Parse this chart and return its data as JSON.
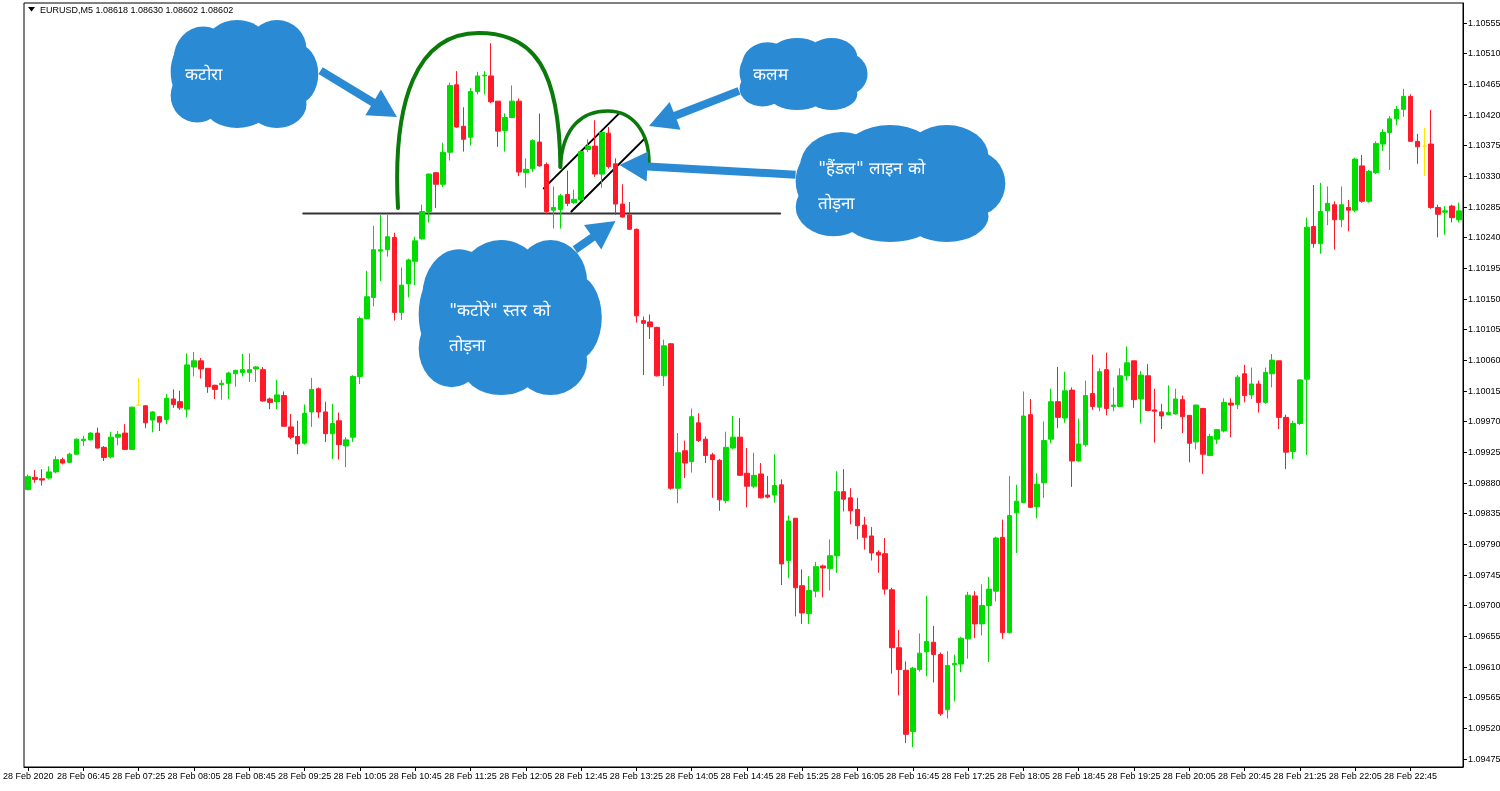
{
  "chart_data": {
    "type": "candlestick",
    "title": "EURUSD,M5 1.08618 1.08630 1.08602 1.08602",
    "x": [
      "2020-02-28T06:05",
      "2020-02-28T06:10",
      "2020-02-28T06:15",
      "2020-02-28T06:20",
      "2020-02-28T06:25",
      "2020-02-28T06:30",
      "2020-02-28T06:35",
      "2020-02-28T06:40",
      "2020-02-28T06:45",
      "2020-02-28T06:50",
      "2020-02-28T06:55",
      "2020-02-28T07:00",
      "2020-02-28T07:05",
      "2020-02-28T07:10",
      "2020-02-28T07:15",
      "2020-02-28T07:20",
      "2020-02-28T07:25",
      "2020-02-28T07:30",
      "2020-02-28T07:35",
      "2020-02-28T07:40",
      "2020-02-28T07:45",
      "2020-02-28T07:50",
      "2020-02-28T07:55",
      "2020-02-28T08:00",
      "2020-02-28T08:05",
      "2020-02-28T08:10",
      "2020-02-28T08:15",
      "2020-02-28T08:20",
      "2020-02-28T08:25",
      "2020-02-28T08:30",
      "2020-02-28T08:35",
      "2020-02-28T08:40",
      "2020-02-28T08:45",
      "2020-02-28T08:50",
      "2020-02-28T08:55",
      "2020-02-28T09:00",
      "2020-02-28T09:05",
      "2020-02-28T09:10",
      "2020-02-28T09:15",
      "2020-02-28T09:20",
      "2020-02-28T09:25",
      "2020-02-28T09:30",
      "2020-02-28T09:35",
      "2020-02-28T09:40",
      "2020-02-28T09:45",
      "2020-02-28T09:50",
      "2020-02-28T09:55",
      "2020-02-28T10:00",
      "2020-02-28T10:05",
      "2020-02-28T10:10",
      "2020-02-28T10:15",
      "2020-02-28T10:20",
      "2020-02-28T10:25",
      "2020-02-28T10:30",
      "2020-02-28T10:35",
      "2020-02-28T10:40",
      "2020-02-28T10:45",
      "2020-02-28T10:50",
      "2020-02-28T10:55",
      "2020-02-28T11:00",
      "2020-02-28T11:05",
      "2020-02-28T11:10",
      "2020-02-28T11:15",
      "2020-02-28T11:20",
      "2020-02-28T11:25",
      "2020-02-28T11:30",
      "2020-02-28T11:35",
      "2020-02-28T11:40",
      "2020-02-28T11:45",
      "2020-02-28T11:50",
      "2020-02-28T11:55",
      "2020-02-28T12:00",
      "2020-02-28T12:05",
      "2020-02-28T12:10",
      "2020-02-28T12:15",
      "2020-02-28T12:20",
      "2020-02-28T12:25",
      "2020-02-28T12:30",
      "2020-02-28T12:35",
      "2020-02-28T12:40",
      "2020-02-28T12:45",
      "2020-02-28T12:50",
      "2020-02-28T12:55",
      "2020-02-28T13:00",
      "2020-02-28T13:05",
      "2020-02-28T13:10",
      "2020-02-28T13:15",
      "2020-02-28T13:20",
      "2020-02-28T13:25",
      "2020-02-28T13:30",
      "2020-02-28T13:35",
      "2020-02-28T13:40",
      "2020-02-28T13:45",
      "2020-02-28T13:50",
      "2020-02-28T13:55",
      "2020-02-28T14:00",
      "2020-02-28T14:05",
      "2020-02-28T14:10",
      "2020-02-28T14:15",
      "2020-02-28T14:20",
      "2020-02-28T14:25",
      "2020-02-28T14:30",
      "2020-02-28T14:35",
      "2020-02-28T14:40",
      "2020-02-28T14:45",
      "2020-02-28T14:50",
      "2020-02-28T14:55",
      "2020-02-28T15:00",
      "2020-02-28T15:05",
      "2020-02-28T15:10",
      "2020-02-28T15:15",
      "2020-02-28T15:20",
      "2020-02-28T15:25",
      "2020-02-28T15:30",
      "2020-02-28T15:35",
      "2020-02-28T15:40",
      "2020-02-28T15:45",
      "2020-02-28T15:50",
      "2020-02-28T15:55",
      "2020-02-28T16:00",
      "2020-02-28T16:05",
      "2020-02-28T16:10",
      "2020-02-28T16:15",
      "2020-02-28T16:20",
      "2020-02-28T16:25",
      "2020-02-28T16:30",
      "2020-02-28T16:35",
      "2020-02-28T16:40",
      "2020-02-28T16:45",
      "2020-02-28T16:50",
      "2020-02-28T16:55",
      "2020-02-28T17:00",
      "2020-02-28T17:05",
      "2020-02-28T17:10",
      "2020-02-28T17:15",
      "2020-02-28T17:20",
      "2020-02-28T17:25",
      "2020-02-28T17:30",
      "2020-02-28T17:35",
      "2020-02-28T17:40",
      "2020-02-28T17:45",
      "2020-02-28T17:50",
      "2020-02-28T17:55",
      "2020-02-28T18:00",
      "2020-02-28T18:05",
      "2020-02-28T18:10",
      "2020-02-28T18:15",
      "2020-02-28T18:20",
      "2020-02-28T18:25",
      "2020-02-28T18:30",
      "2020-02-28T18:35",
      "2020-02-28T18:40",
      "2020-02-28T18:45",
      "2020-02-28T18:50",
      "2020-02-28T18:55",
      "2020-02-28T19:00",
      "2020-02-28T19:05",
      "2020-02-28T19:10",
      "2020-02-28T19:15",
      "2020-02-28T19:20",
      "2020-02-28T19:25",
      "2020-02-28T19:30",
      "2020-02-28T19:35",
      "2020-02-28T19:40",
      "2020-02-28T19:45",
      "2020-02-28T19:50",
      "2020-02-28T19:55",
      "2020-02-28T20:00",
      "2020-02-28T20:05",
      "2020-02-28T20:10",
      "2020-02-28T20:15",
      "2020-02-28T20:20",
      "2020-02-28T20:25",
      "2020-02-28T20:30",
      "2020-02-28T20:35",
      "2020-02-28T20:40",
      "2020-02-28T20:45",
      "2020-02-28T20:50",
      "2020-02-28T20:55",
      "2020-02-28T21:00",
      "2020-02-28T21:05",
      "2020-02-28T21:10",
      "2020-02-28T21:15",
      "2020-02-28T21:20",
      "2020-02-28T21:25",
      "2020-02-28T21:30",
      "2020-02-28T21:35",
      "2020-02-28T21:40",
      "2020-02-28T21:45",
      "2020-02-28T21:50",
      "2020-02-28T21:55",
      "2020-02-28T22:00",
      "2020-02-28T22:05",
      "2020-02-28T22:10",
      "2020-02-28T22:15",
      "2020-02-28T22:20",
      "2020-02-28T22:25",
      "2020-02-28T22:30",
      "2020-02-28T22:35",
      "2020-02-28T22:40",
      "2020-02-28T22:45",
      "2020-02-28T22:50",
      "2020-02-28T22:55",
      "2020-02-28T23:00",
      "2020-02-28T23:05",
      "2020-02-28T23:10",
      "2020-02-28T23:15",
      "2020-02-28T23:20"
    ],
    "ohlc": [
      [
        1.0987,
        1.09892,
        1.09869,
        1.09889
      ],
      [
        1.09888,
        1.09899,
        1.0988,
        1.09885
      ],
      [
        1.09886,
        1.099,
        1.09876,
        1.09884
      ],
      [
        1.09887,
        1.09904,
        1.09885,
        1.09896
      ],
      [
        1.09896,
        1.09919,
        1.09894,
        1.09914
      ],
      [
        1.09914,
        1.09917,
        1.09907,
        1.09909
      ],
      [
        1.0991,
        1.09924,
        1.09909,
        1.09922
      ],
      [
        1.09922,
        1.09945,
        1.09921,
        1.09944
      ],
      [
        1.09942,
        1.09949,
        1.09934,
        1.09944
      ],
      [
        1.09943,
        1.09954,
        1.09942,
        1.09953
      ],
      [
        1.09953,
        1.09961,
        1.0993,
        1.09931
      ],
      [
        1.09932,
        1.09934,
        1.09912,
        1.09917
      ],
      [
        1.09918,
        1.09955,
        1.09916,
        1.09947
      ],
      [
        1.09947,
        1.09956,
        1.09935,
        1.09951
      ],
      [
        1.09953,
        1.09966,
        1.09928,
        1.09929
      ],
      [
        1.09929,
        1.09992,
        1.09928,
        1.09991
      ],
      [
        1.09994,
        1.10034,
        1.09994,
        1.09994
      ],
      [
        1.09993,
        1.09994,
        1.0996,
        1.09968
      ],
      [
        1.09972,
        1.09985,
        1.09954,
        1.09984
      ],
      [
        1.09977,
        1.09978,
        1.09956,
        1.09969
      ],
      [
        1.09973,
        1.1001,
        1.09966,
        1.10004
      ],
      [
        1.10003,
        1.10017,
        1.0999,
        1.09995
      ],
      [
        1.09999,
        1.10015,
        1.09987,
        1.0999
      ],
      [
        1.09988,
        1.1007,
        1.09976,
        1.10053
      ],
      [
        1.1005,
        1.10072,
        1.10036,
        1.10059
      ],
      [
        1.10059,
        1.10063,
        1.10033,
        1.10047
      ],
      [
        1.10048,
        1.10048,
        1.10012,
        1.10021
      ],
      [
        1.10023,
        1.10024,
        1.10003,
        1.10017
      ],
      [
        1.10024,
        1.10031,
        1.10002,
        1.10026
      ],
      [
        1.10026,
        1.10043,
        1.10003,
        1.10041
      ],
      [
        1.1004,
        1.10046,
        1.10021,
        1.10045
      ],
      [
        1.10042,
        1.10069,
        1.10036,
        1.10046
      ],
      [
        1.10042,
        1.1007,
        1.10028,
        1.10046
      ],
      [
        1.10047,
        1.10051,
        1.10028,
        1.1005
      ],
      [
        1.10046,
        1.1005,
        1.09999,
        1.1
      ],
      [
        1.10003,
        1.10005,
        1.09988,
        1.09998
      ],
      [
        1.09999,
        1.10031,
        1.09988,
        1.10009
      ],
      [
        1.10008,
        1.10014,
        1.09962,
        1.09963
      ],
      [
        1.09962,
        1.09981,
        1.09944,
        1.09947
      ],
      [
        1.09948,
        1.09971,
        1.09922,
        1.09937
      ],
      [
        1.09938,
        1.09995,
        1.09936,
        1.09982
      ],
      [
        1.09984,
        1.10034,
        1.09962,
        1.10017
      ],
      [
        1.10018,
        1.1002,
        1.09975,
        1.09984
      ],
      [
        1.09984,
        1.09999,
        1.0994,
        1.09952
      ],
      [
        1.09952,
        1.09996,
        1.09915,
        1.09967
      ],
      [
        1.09971,
        1.09983,
        1.09914,
        1.09936
      ],
      [
        1.09934,
        1.09947,
        1.09903,
        1.09943
      ],
      [
        1.09947,
        1.10038,
        1.0994,
        1.10036
      ],
      [
        1.10036,
        1.10124,
        1.10025,
        1.10121
      ],
      [
        1.10121,
        1.10191,
        1.1012,
        1.10153
      ],
      [
        1.10152,
        1.10257,
        1.10139,
        1.10222
      ],
      [
        1.1022,
        1.10273,
        1.10176,
        1.10222
      ],
      [
        1.10222,
        1.10273,
        1.10212,
        1.10241
      ],
      [
        1.1024,
        1.10247,
        1.10118,
        1.1013
      ],
      [
        1.1013,
        1.10196,
        1.10119,
        1.1017
      ],
      [
        1.10172,
        1.10209,
        1.10152,
        1.10207
      ],
      [
        1.10205,
        1.10241,
        1.1017,
        1.10235
      ],
      [
        1.10238,
        1.10288,
        1.10237,
        1.10278
      ],
      [
        1.10278,
        1.10334,
        1.10262,
        1.10333
      ],
      [
        1.10335,
        1.10336,
        1.10283,
        1.10318
      ],
      [
        1.10318,
        1.10379,
        1.10314,
        1.10365
      ],
      [
        1.10365,
        1.10467,
        1.10353,
        1.10463
      ],
      [
        1.10464,
        1.10484,
        1.10401,
        1.10402
      ],
      [
        1.10403,
        1.10431,
        1.10366,
        1.10384
      ],
      [
        1.10387,
        1.10459,
        1.10375,
        1.10454
      ],
      [
        1.10454,
        1.10483,
        1.1045,
        1.10477
      ],
      [
        1.10477,
        1.10484,
        1.1045,
        1.10478
      ],
      [
        1.10477,
        1.10525,
        1.10437,
        1.10439
      ],
      [
        1.1044,
        1.1044,
        1.10373,
        1.10396
      ],
      [
        1.10397,
        1.10422,
        1.10366,
        1.10416
      ],
      [
        1.10416,
        1.10463,
        1.10415,
        1.1044
      ],
      [
        1.1044,
        1.10444,
        1.1033,
        1.10336
      ],
      [
        1.10335,
        1.10356,
        1.10313,
        1.1034
      ],
      [
        1.10341,
        1.10384,
        1.10336,
        1.10382
      ],
      [
        1.1038,
        1.10422,
        1.10344,
        1.10345
      ],
      [
        1.10347,
        1.1035,
        1.10274,
        1.10278
      ],
      [
        1.1028,
        1.10315,
        1.10253,
        1.10284
      ],
      [
        1.10281,
        1.10304,
        1.10253,
        1.10301
      ],
      [
        1.10303,
        1.10338,
        1.10286,
        1.1029
      ],
      [
        1.10291,
        1.1031,
        1.10289,
        1.10296
      ],
      [
        1.10295,
        1.10368,
        1.10293,
        1.10366
      ],
      [
        1.10369,
        1.10384,
        1.10365,
        1.10374
      ],
      [
        1.10374,
        1.10412,
        1.10329,
        1.10333
      ],
      [
        1.10333,
        1.10395,
        1.10313,
        1.10394
      ],
      [
        1.10393,
        1.10402,
        1.10341,
        1.10344
      ],
      [
        1.10348,
        1.10356,
        1.10273,
        1.10289
      ],
      [
        1.10289,
        1.10318,
        1.10269,
        1.1027
      ],
      [
        1.10273,
        1.10292,
        1.10251,
        1.10252
      ],
      [
        1.10252,
        1.10253,
        1.10115,
        1.10125
      ],
      [
        1.10118,
        1.10124,
        1.10038,
        1.10114
      ],
      [
        1.10116,
        1.10127,
        1.10091,
        1.10109
      ],
      [
        1.10108,
        1.10109,
        1.10036,
        1.10037
      ],
      [
        1.10037,
        1.1009,
        1.10022,
        1.10081
      ],
      [
        1.10084,
        1.10085,
        1.0987,
        1.09872
      ],
      [
        1.09872,
        1.09953,
        1.0985,
        1.09924
      ],
      [
        1.09927,
        1.09942,
        1.09887,
        1.09909
      ],
      [
        1.09911,
        1.09989,
        1.09895,
        1.09977
      ],
      [
        1.09968,
        1.09982,
        1.0994,
        1.09942
      ],
      [
        1.09944,
        1.09948,
        1.09909,
        1.0992
      ],
      [
        1.09921,
        1.09924,
        1.09858,
        1.09914
      ],
      [
        1.09913,
        1.09915,
        1.09839,
        1.09855
      ],
      [
        1.09854,
        1.09955,
        1.0985,
        1.09932
      ],
      [
        1.09931,
        1.09978,
        1.09929,
        1.09947
      ],
      [
        1.09947,
        1.09975,
        1.0989,
        1.09891
      ],
      [
        1.09894,
        1.09931,
        1.09844,
        1.09875
      ],
      [
        1.09875,
        1.09924,
        1.09872,
        1.09891
      ],
      [
        1.09893,
        1.09909,
        1.09857,
        1.09858
      ],
      [
        1.09862,
        1.0989,
        1.09857,
        1.09859
      ],
      [
        1.09862,
        1.09922,
        1.09851,
        1.09876
      ],
      [
        1.09877,
        1.09885,
        1.0973,
        1.09761
      ],
      [
        1.09766,
        1.09832,
        1.0974,
        1.09824
      ],
      [
        1.09828,
        1.09828,
        1.09684,
        1.09726
      ],
      [
        1.09729,
        1.09753,
        1.09673,
        1.09689
      ],
      [
        1.09688,
        1.09743,
        1.09673,
        1.09722
      ],
      [
        1.09721,
        1.09764,
        1.09712,
        1.09757
      ],
      [
        1.09758,
        1.0976,
        1.09712,
        1.09755
      ],
      [
        1.09754,
        1.09797,
        1.09722,
        1.09773
      ],
      [
        1.09773,
        1.09897,
        1.09748,
        1.09867
      ],
      [
        1.09867,
        1.099,
        1.09838,
        1.09856
      ],
      [
        1.09858,
        1.09872,
        1.09819,
        1.09839
      ],
      [
        1.09841,
        1.09858,
        1.09797,
        1.09817
      ],
      [
        1.09818,
        1.0983,
        1.09782,
        1.098
      ],
      [
        1.09802,
        1.09815,
        1.09766,
        1.09777
      ],
      [
        1.09778,
        1.09781,
        1.09748,
        1.09774
      ],
      [
        1.09776,
        1.09799,
        1.09716,
        1.09724
      ],
      [
        1.09723,
        1.09726,
        1.096,
        1.09638
      ],
      [
        1.09638,
        1.09664,
        1.09568,
        1.09606
      ],
      [
        1.09605,
        1.09618,
        1.09498,
        1.09511
      ],
      [
        1.09515,
        1.0961,
        1.09492,
        1.09608
      ],
      [
        1.09606,
        1.09659,
        1.09603,
        1.0963
      ],
      [
        1.09632,
        1.09714,
        1.09596,
        1.09647
      ],
      [
        1.09646,
        1.0967,
        1.09587,
        1.09628
      ],
      [
        1.09628,
        1.09631,
        1.09538,
        1.09541
      ],
      [
        1.09547,
        1.09633,
        1.09534,
        1.09612
      ],
      [
        1.09613,
        1.09628,
        1.09559,
        1.09615
      ],
      [
        1.09614,
        1.09654,
        1.09602,
        1.09652
      ],
      [
        1.09651,
        1.0972,
        1.09622,
        1.09715
      ],
      [
        1.09714,
        1.09721,
        1.09652,
        1.09673
      ],
      [
        1.09673,
        1.09731,
        1.09656,
        1.097
      ],
      [
        1.097,
        1.09742,
        1.09617,
        1.09724
      ],
      [
        1.09721,
        1.09801,
        1.09706,
        1.09799
      ],
      [
        1.098,
        1.09826,
        1.09651,
        1.0966
      ],
      [
        1.0966,
        1.0989,
        1.09659,
        1.09832
      ],
      [
        1.09836,
        1.09877,
        1.09777,
        1.09853
      ],
      [
        1.09851,
        1.10014,
        1.0985,
        1.09978
      ],
      [
        1.0998,
        1.10003,
        1.09843,
        1.09844
      ],
      [
        1.09845,
        1.09894,
        1.09828,
        1.09878
      ],
      [
        1.0988,
        1.0997,
        1.09858,
        1.09942
      ],
      [
        1.09944,
        1.10018,
        1.09938,
        1.09999
      ],
      [
        1.09999,
        1.1005,
        1.0996,
        1.09976
      ],
      [
        1.09975,
        1.10043,
        1.09968,
        1.10015
      ],
      [
        1.10016,
        1.1002,
        1.09874,
        1.09912
      ],
      [
        1.09912,
        1.09974,
        1.09911,
        1.09937
      ],
      [
        1.09936,
        1.1003,
        1.09933,
        1.10008
      ],
      [
        1.10011,
        1.10068,
        1.09987,
        1.09992
      ],
      [
        1.09991,
        1.10048,
        1.09985,
        1.10043
      ],
      [
        1.10046,
        1.10071,
        1.09979,
        1.09989
      ],
      [
        1.09992,
        1.1002,
        1.09985,
        1.09994
      ],
      [
        1.09992,
        1.10048,
        1.09991,
        1.10037
      ],
      [
        1.10037,
        1.1008,
        1.1003,
        1.10056
      ],
      [
        1.10059,
        1.10059,
        1.0999,
        1.10002
      ],
      [
        1.10003,
        1.10044,
        1.09967,
        1.10038
      ],
      [
        1.10037,
        1.10054,
        1.09985,
        1.09986
      ],
      [
        1.09987,
        1.10018,
        1.09939,
        1.09985
      ],
      [
        1.09984,
        1.09996,
        1.09959,
        1.09978
      ],
      [
        1.0998,
        1.10023,
        1.09979,
        1.09983
      ],
      [
        1.09981,
        1.10018,
        1.0998,
        1.10003
      ],
      [
        1.10002,
        1.10008,
        1.09953,
        1.09977
      ],
      [
        1.09979,
        1.09979,
        1.0991,
        1.09938
      ],
      [
        1.0994,
        1.09995,
        1.09929,
        1.09994
      ],
      [
        1.09989,
        1.0999,
        1.09893,
        1.09922
      ],
      [
        1.0992,
        1.09952,
        1.09919,
        1.09948
      ],
      [
        1.09944,
        1.09959,
        1.09937,
        1.09958
      ],
      [
        1.09956,
        1.10004,
        1.09954,
        1.09998
      ],
      [
        1.09997,
        1.10004,
        1.09947,
        1.09994
      ],
      [
        1.09995,
        1.10038,
        1.09988,
        1.10035
      ],
      [
        1.1004,
        1.10053,
        1.09998,
        1.10008
      ],
      [
        1.10009,
        1.10049,
        1.10003,
        1.10025
      ],
      [
        1.10025,
        1.1003,
        1.09983,
        1.09998
      ],
      [
        1.09998,
        1.10049,
        1.09996,
        1.10042
      ],
      [
        1.1004,
        1.10069,
        1.1002,
        1.1006
      ],
      [
        1.10059,
        1.10059,
        1.09959,
        1.09976
      ],
      [
        1.09976,
        1.0998,
        1.099,
        1.09925
      ],
      [
        1.09926,
        1.09971,
        1.09915,
        1.09967
      ],
      [
        1.09967,
        1.10032,
        1.09965,
        1.10031
      ],
      [
        1.10032,
        1.10269,
        1.09921,
        1.10255
      ],
      [
        1.10256,
        1.10317,
        1.10225,
        1.10231
      ],
      [
        1.10231,
        1.1032,
        1.10216,
        1.10278
      ],
      [
        1.10279,
        1.10315,
        1.10258,
        1.1029
      ],
      [
        1.10288,
        1.10293,
        1.10222,
        1.10266
      ],
      [
        1.10266,
        1.10315,
        1.10255,
        1.10288
      ],
      [
        1.10284,
        1.10295,
        1.10249,
        1.1028
      ],
      [
        1.1028,
        1.10357,
        1.10277,
        1.10355
      ],
      [
        1.10345,
        1.10361,
        1.10291,
        1.10293
      ],
      [
        1.10293,
        1.10339,
        1.10291,
        1.10337
      ],
      [
        1.10335,
        1.10381,
        1.10333,
        1.10378
      ],
      [
        1.10377,
        1.10399,
        1.10367,
        1.10394
      ],
      [
        1.10394,
        1.10418,
        1.10339,
        1.10414
      ],
      [
        1.10414,
        1.10433,
        1.10405,
        1.10428
      ],
      [
        1.10428,
        1.10458,
        1.10417,
        1.10447
      ],
      [
        1.10447,
        1.1045,
        1.10381,
        1.10381
      ],
      [
        1.10381,
        1.10392,
        1.10348,
        1.10373
      ],
      [
        1.10374,
        1.10401,
        1.1033,
        1.10374
      ],
      [
        1.10377,
        1.10427,
        1.10282,
        1.10284
      ],
      [
        1.10284,
        1.10288,
        1.1024,
        1.10274
      ],
      [
        1.10277,
        1.10286,
        1.10244,
        1.10279
      ],
      [
        1.10286,
        1.10288,
        1.10262,
        1.10269
      ],
      [
        1.10266,
        1.10291,
        1.10262,
        1.10279
      ]
    ],
    "colors": [
      "#00dc00",
      "#ff1a2a",
      "#ff1a2a",
      "#00dc00",
      "#00dc00",
      "#ff1a2a",
      "#00dc00",
      "#00dc00",
      "#00dc00",
      "#00dc00",
      "#ff1a2a",
      "#ff1a2a",
      "#00dc00",
      "#00dc00",
      "#ff1a2a",
      "#00dc00",
      "#ffe800",
      "#ff1a2a",
      "#00dc00",
      "#ff1a2a",
      "#00dc00",
      "#ff1a2a",
      "#ff1a2a",
      "#00dc00",
      "#00dc00",
      "#ff1a2a",
      "#ff1a2a",
      "#ff1a2a",
      "#00dc00",
      "#00dc00",
      "#00dc00",
      "#00dc00",
      "#00dc00",
      "#00dc00",
      "#ff1a2a",
      "#ff1a2a",
      "#00dc00",
      "#ff1a2a",
      "#ff1a2a",
      "#ff1a2a",
      "#00dc00",
      "#00dc00",
      "#ff1a2a",
      "#ff1a2a",
      "#00dc00",
      "#ff1a2a",
      "#00dc00",
      "#00dc00",
      "#00dc00",
      "#00dc00",
      "#00dc00",
      "#00dc00",
      "#00dc00",
      "#ff1a2a",
      "#00dc00",
      "#00dc00",
      "#00dc00",
      "#00dc00",
      "#00dc00",
      "#ff1a2a",
      "#00dc00",
      "#00dc00",
      "#ff1a2a",
      "#ff1a2a",
      "#00dc00",
      "#00dc00",
      "#00dc00",
      "#ff1a2a",
      "#ff1a2a",
      "#00dc00",
      "#00dc00",
      "#ff1a2a",
      "#00dc00",
      "#00dc00",
      "#ff1a2a",
      "#ff1a2a",
      "#00dc00",
      "#00dc00",
      "#ff1a2a",
      "#00dc00",
      "#00dc00",
      "#00dc00",
      "#ff1a2a",
      "#00dc00",
      "#ff1a2a",
      "#ff1a2a",
      "#ff1a2a",
      "#ff1a2a",
      "#ff1a2a",
      "#ff1a2a",
      "#ff1a2a",
      "#ff1a2a",
      "#00dc00",
      "#ff1a2a",
      "#00dc00",
      "#ff1a2a",
      "#00dc00",
      "#ff1a2a",
      "#ff1a2a",
      "#ff1a2a",
      "#ff1a2a",
      "#00dc00",
      "#00dc00",
      "#ff1a2a",
      "#ff1a2a",
      "#00dc00",
      "#ff1a2a",
      "#ff1a2a",
      "#00dc00",
      "#ff1a2a",
      "#00dc00",
      "#ff1a2a",
      "#ff1a2a",
      "#00dc00",
      "#00dc00",
      "#ff1a2a",
      "#00dc00",
      "#00dc00",
      "#ff1a2a",
      "#ff1a2a",
      "#ff1a2a",
      "#ff1a2a",
      "#ff1a2a",
      "#ff1a2a",
      "#ff1a2a",
      "#ff1a2a",
      "#ff1a2a",
      "#ff1a2a",
      "#00dc00",
      "#00dc00",
      "#00dc00",
      "#ff1a2a",
      "#ff1a2a",
      "#00dc00",
      "#00dc00",
      "#00dc00",
      "#00dc00",
      "#ff1a2a",
      "#00dc00",
      "#00dc00",
      "#00dc00",
      "#ff1a2a",
      "#00dc00",
      "#00dc00",
      "#00dc00",
      "#ff1a2a",
      "#00dc00",
      "#00dc00",
      "#00dc00",
      "#ff1a2a",
      "#00dc00",
      "#ff1a2a",
      "#00dc00",
      "#00dc00",
      "#ff1a2a",
      "#00dc00",
      "#ff1a2a",
      "#00dc00",
      "#00dc00",
      "#00dc00",
      "#ff1a2a",
      "#00dc00",
      "#ff1a2a",
      "#ff1a2a",
      "#ff1a2a",
      "#00dc00",
      "#00dc00",
      "#ff1a2a",
      "#ff1a2a",
      "#00dc00",
      "#ff1a2a",
      "#00dc00",
      "#00dc00",
      "#00dc00",
      "#ff1a2a",
      "#00dc00",
      "#ff1a2a",
      "#00dc00",
      "#ff1a2a",
      "#00dc00",
      "#00dc00",
      "#ff1a2a",
      "#ff1a2a",
      "#00dc00",
      "#00dc00",
      "#00dc00",
      "#ff1a2a",
      "#00dc00",
      "#00dc00",
      "#ff1a2a",
      "#00dc00",
      "#ff1a2a",
      "#00dc00",
      "#ff1a2a",
      "#00dc00",
      "#00dc00",
      "#00dc00",
      "#00dc00",
      "#00dc00",
      "#00dc00",
      "#ff1a2a",
      "#ff1a2a",
      "#ffe800",
      "#ff1a2a",
      "#ff1a2a",
      "#00dc00",
      "#ff1a2a",
      "#00dc00"
    ],
    "series": [
      {
        "type": "line",
        "x": [
          "2020-02-28T09:24",
          "2020-02-28T15:09"
        ],
        "values": [
          1.10275,
          1.10275
        ],
        "color": "#333333"
      },
      {
        "type": "line",
        "x": [
          "2020-02-28T12:18",
          "2020-02-28T13:12"
        ],
        "values": [
          1.10312,
          1.10421
        ],
        "color": "#000000"
      },
      {
        "type": "line",
        "x": [
          "2020-02-28T12:38",
          "2020-02-28T13:31"
        ],
        "values": [
          1.10278,
          1.10385
        ],
        "color": "#000000"
      }
    ],
    "xlim": [
      "2020-02-28T06:02",
      "2020-02-28T23:23"
    ],
    "xticks": [
      {
        "value": "2020-02-28T06:05",
        "label": "28 Feb 2020"
      },
      {
        "value": "2020-02-28T06:45",
        "label": "28 Feb 06:45"
      },
      {
        "value": "2020-02-28T07:25",
        "label": "28 Feb 07:25"
      },
      {
        "value": "2020-02-28T08:05",
        "label": "28 Feb 08:05"
      },
      {
        "value": "2020-02-28T08:45",
        "label": "28 Feb 08:45"
      },
      {
        "value": "2020-02-28T09:25",
        "label": "28 Feb 09:25"
      },
      {
        "value": "2020-02-28T10:05",
        "label": "28 Feb 10:05"
      },
      {
        "value": "2020-02-28T10:45",
        "label": "28 Feb 10:45"
      },
      {
        "value": "2020-02-28T11:25",
        "label": "28 Feb 11:25"
      },
      {
        "value": "2020-02-28T12:05",
        "label": "28 Feb 12:05"
      },
      {
        "value": "2020-02-28T12:45",
        "label": "28 Feb 12:45"
      },
      {
        "value": "2020-02-28T13:25",
        "label": "28 Feb 13:25"
      },
      {
        "value": "2020-02-28T14:05",
        "label": "28 Feb 14:05"
      },
      {
        "value": "2020-02-28T14:45",
        "label": "28 Feb 14:45"
      },
      {
        "value": "2020-02-28T15:25",
        "label": "28 Feb 15:25"
      },
      {
        "value": "2020-02-28T16:05",
        "label": "28 Feb 16:05"
      },
      {
        "value": "2020-02-28T16:45",
        "label": "28 Feb 16:45"
      },
      {
        "value": "2020-02-28T17:25",
        "label": "28 Feb 17:25"
      },
      {
        "value": "2020-02-28T18:05",
        "label": "28 Feb 18:05"
      },
      {
        "value": "2020-02-28T18:45",
        "label": "28 Feb 18:45"
      },
      {
        "value": "2020-02-28T19:25",
        "label": "28 Feb 19:25"
      },
      {
        "value": "2020-02-28T20:05",
        "label": "28 Feb 20:05"
      },
      {
        "value": "2020-02-28T20:45",
        "label": "28 Feb 20:45"
      },
      {
        "value": "2020-02-28T21:25",
        "label": "28 Feb 21:25"
      },
      {
        "value": "2020-02-28T22:05",
        "label": "28 Feb 22:05"
      },
      {
        "value": "2020-02-28T22:45",
        "label": "28 Feb 22:45"
      }
    ],
    "ylim": [
      1.09463,
      1.10584
    ],
    "yticks": [
      1.09475,
      {
        "value": 1.0952,
        "label": "1.09520"
      },
      1.09565,
      {
        "value": 1.0961,
        "label": "1.09610"
      },
      1.09655,
      {
        "value": 1.097,
        "label": "1.09700"
      },
      1.09745,
      {
        "value": 1.0979,
        "label": "1.09790"
      },
      1.09835,
      {
        "value": 1.0988,
        "label": "1.09880"
      },
      1.09925,
      {
        "value": 1.0997,
        "label": "1.09970"
      },
      1.10015,
      {
        "value": 1.1006,
        "label": "1.10060"
      },
      1.10105,
      {
        "value": 1.1015,
        "label": "1.10150"
      },
      1.10195,
      {
        "value": 1.1024,
        "label": "1.10240"
      },
      1.10285,
      {
        "value": 1.1033,
        "label": "1.10330"
      },
      1.10375,
      {
        "value": 1.1042,
        "label": "1.10420"
      },
      1.10465,
      {
        "value": 1.1051,
        "label": "1.10510"
      },
      1.10555
    ],
    "annotations": [
      "कटोरा",
      "कलम",
      "\"हैंडल\" लाइन को तोड़ना",
      "\"कटोरे\" स्तर को तोड़ना"
    ]
  }
}
